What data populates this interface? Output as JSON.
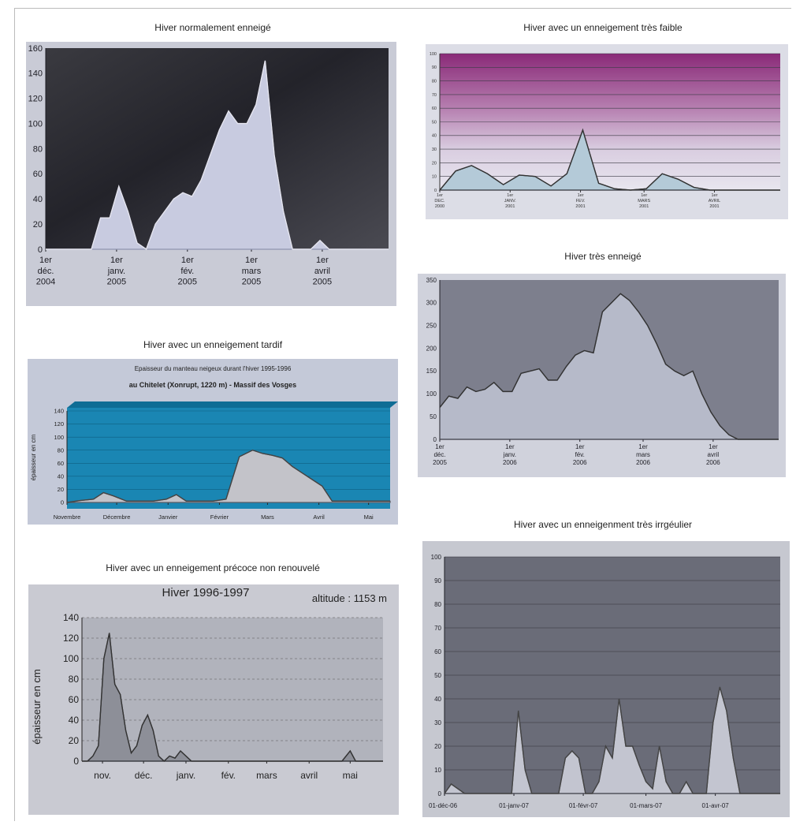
{
  "titles": {
    "p1": "Hiver normalement enneigé",
    "p2": "Hiver avec un enneigement très faible",
    "p3": "Hiver avec un enneigement tardif",
    "p4": "Hiver très enneigé",
    "p5": "Hiver avec un enneigement précoce non renouvelé",
    "p6": "Hiver avec un enneigenment très irrgéulier"
  },
  "chart_data": [
    {
      "id": "p1",
      "type": "area",
      "title": "",
      "ylim": [
        0,
        160
      ],
      "yticks": [
        "0",
        "20",
        "40",
        "60",
        "80",
        "100",
        "120",
        "140",
        "160"
      ],
      "tick_labels": [
        "1er déc. 2004",
        "1er janv. 2005",
        "1er fév. 2005",
        "1er mars 2005",
        "1er avril 2005"
      ],
      "tick_positions": [
        0,
        31,
        62,
        90,
        121
      ],
      "xmax": 150,
      "x": [
        0,
        4,
        8,
        12,
        16,
        20,
        24,
        28,
        32,
        36,
        40,
        44,
        48,
        52,
        56,
        60,
        64,
        68,
        72,
        76,
        80,
        84,
        88,
        92,
        96,
        100,
        104,
        108,
        112,
        116,
        120,
        124,
        128,
        132,
        136,
        140,
        144,
        148,
        150
      ],
      "y": [
        0,
        0,
        0,
        0,
        0,
        0,
        25,
        25,
        50,
        30,
        5,
        0,
        20,
        30,
        40,
        45,
        42,
        55,
        75,
        95,
        110,
        100,
        100,
        115,
        150,
        75,
        30,
        0,
        0,
        0,
        7,
        0,
        0,
        0,
        0,
        0,
        0,
        0,
        0
      ],
      "grid": false
    },
    {
      "id": "p2",
      "type": "area",
      "title": "",
      "ylim": [
        0,
        100
      ],
      "yticks": [
        "0",
        "10",
        "20",
        "30",
        "40",
        "50",
        "60",
        "70",
        "80",
        "90",
        "100"
      ],
      "tick_labels": [
        "1er DEC. 2000",
        "1er JANV. 2001",
        "1er FEV. 2001",
        "1er MARS 2001",
        "1er AVRIL 2001"
      ],
      "tick_positions": [
        0,
        31,
        62,
        90,
        121
      ],
      "xmax": 150,
      "x": [
        0,
        7,
        14,
        21,
        28,
        35,
        42,
        49,
        56,
        63,
        70,
        77,
        84,
        91,
        98,
        105,
        112,
        119,
        126,
        133,
        140,
        150
      ],
      "y": [
        0,
        14,
        18,
        12,
        4,
        11,
        10,
        3,
        12,
        44,
        5,
        1,
        0,
        1,
        12,
        8,
        2,
        0,
        0,
        0,
        0,
        0
      ],
      "grid": true
    },
    {
      "id": "p3",
      "type": "area",
      "title": "Epaisseur du manteau neigeux durant l'hiver 1995-1996",
      "subtitle": "au Chitelet (Xonrupt, 1220 m) - Massif des Vosges",
      "ylabel": "épaisseur en cm",
      "ylim": [
        0,
        140
      ],
      "yticks": [
        "0",
        "20",
        "40",
        "60",
        "80",
        "100",
        "120",
        "140"
      ],
      "tick_labels": [
        "Novembre",
        "Décembre",
        "Janvier",
        "Février",
        "Mars",
        "Avril",
        "Mai"
      ],
      "tick_positions": [
        0,
        30,
        61,
        92,
        121,
        152,
        182
      ],
      "xmax": 195,
      "x": [
        0,
        8,
        16,
        22,
        28,
        36,
        44,
        52,
        60,
        66,
        72,
        80,
        88,
        96,
        104,
        112,
        118,
        124,
        130,
        136,
        142,
        148,
        154,
        160,
        166,
        172,
        180,
        188,
        195
      ],
      "y": [
        0,
        3,
        5,
        15,
        10,
        2,
        2,
        2,
        5,
        12,
        2,
        2,
        2,
        5,
        70,
        80,
        75,
        72,
        68,
        55,
        45,
        35,
        25,
        2,
        2,
        2,
        2,
        2,
        2
      ],
      "grid": false
    },
    {
      "id": "p4",
      "type": "area",
      "title": "",
      "ylim": [
        0,
        350
      ],
      "yticks": [
        "0",
        "50",
        "100",
        "150",
        "200",
        "250",
        "300",
        "350"
      ],
      "tick_labels": [
        "1er déc. 2005",
        "1er janv. 2006",
        "1er fév. 2006",
        "1er mars 2006",
        "1er avril 2006"
      ],
      "tick_positions": [
        0,
        31,
        62,
        90,
        121
      ],
      "xmax": 150,
      "x": [
        0,
        4,
        8,
        12,
        16,
        20,
        24,
        28,
        32,
        36,
        40,
        44,
        48,
        52,
        56,
        60,
        64,
        68,
        72,
        76,
        80,
        84,
        88,
        92,
        96,
        100,
        104,
        108,
        112,
        116,
        120,
        124,
        128,
        132,
        136,
        140,
        144,
        148,
        150
      ],
      "y": [
        70,
        95,
        90,
        115,
        105,
        110,
        125,
        105,
        105,
        145,
        150,
        155,
        130,
        130,
        160,
        185,
        195,
        190,
        280,
        300,
        320,
        305,
        280,
        250,
        210,
        165,
        150,
        140,
        150,
        100,
        60,
        30,
        10,
        0,
        0,
        0,
        0,
        0,
        0
      ],
      "grid": false
    },
    {
      "id": "p5",
      "type": "area",
      "title": "Hiver 1996-1997",
      "annotation": "altitude : 1153 m",
      "ylabel": "épaisseur en cm",
      "ylim": [
        0,
        140
      ],
      "yticks": [
        "0",
        "20",
        "40",
        "60",
        "80",
        "100",
        "120",
        "140"
      ],
      "tick_labels": [
        "nov.",
        "déc.",
        "janv.",
        "fév.",
        "mars",
        "avril",
        "mai"
      ],
      "tick_positions": [
        15,
        45,
        76,
        107,
        135,
        166,
        196
      ],
      "xmax": 220,
      "x": [
        0,
        4,
        8,
        12,
        16,
        20,
        24,
        28,
        32,
        36,
        40,
        44,
        48,
        52,
        56,
        60,
        64,
        68,
        72,
        76,
        80,
        84,
        88,
        92,
        96,
        100,
        104,
        108,
        112,
        116,
        120,
        130,
        140,
        150,
        160,
        170,
        180,
        190,
        196,
        200,
        206,
        212,
        220
      ],
      "y": [
        0,
        0,
        5,
        15,
        100,
        125,
        75,
        65,
        30,
        8,
        15,
        35,
        45,
        30,
        5,
        0,
        5,
        3,
        10,
        5,
        0,
        0,
        0,
        0,
        0,
        0,
        0,
        0,
        0,
        0,
        0,
        0,
        0,
        0,
        0,
        0,
        0,
        0,
        10,
        0,
        0,
        0,
        0
      ],
      "grid": true
    },
    {
      "id": "p6",
      "type": "area",
      "title": "",
      "ylim": [
        0,
        100
      ],
      "yticks": [
        "0",
        "10",
        "20",
        "30",
        "40",
        "50",
        "60",
        "70",
        "80",
        "90",
        "100"
      ],
      "tick_labels": [
        "01-déc-06",
        "01-janv-07",
        "01-févr-07",
        "01-mars-07",
        "01-avr-07"
      ],
      "tick_positions": [
        0,
        31,
        62,
        90,
        121
      ],
      "xmax": 150,
      "x": [
        0,
        3,
        6,
        9,
        12,
        15,
        18,
        21,
        24,
        27,
        30,
        33,
        36,
        39,
        42,
        45,
        48,
        51,
        54,
        57,
        60,
        63,
        66,
        69,
        72,
        75,
        78,
        81,
        84,
        87,
        90,
        93,
        96,
        99,
        102,
        105,
        108,
        111,
        114,
        117,
        120,
        123,
        126,
        129,
        132,
        135,
        138,
        141,
        144,
        147,
        150
      ],
      "y": [
        0,
        4,
        2,
        0,
        0,
        0,
        0,
        0,
        0,
        0,
        0,
        35,
        10,
        0,
        0,
        0,
        0,
        0,
        15,
        18,
        15,
        0,
        0,
        5,
        20,
        15,
        40,
        20,
        20,
        12,
        5,
        2,
        20,
        5,
        0,
        0,
        5,
        0,
        0,
        0,
        30,
        45,
        35,
        15,
        0,
        0,
        0,
        0,
        0,
        0,
        0
      ],
      "grid": true
    }
  ]
}
